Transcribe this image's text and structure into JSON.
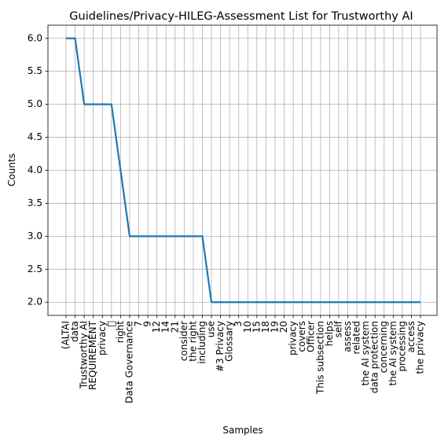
{
  "chart_data": {
    "type": "line",
    "title": "Guidelines/Privacy-HILEG-Assessment List for Trustworthy AI",
    "xlabel": "Samples",
    "ylabel": "Counts",
    "ylim": [
      1.8,
      6.2
    ],
    "yticks": [
      "2.0",
      "2.5",
      "3.0",
      "3.5",
      "4.0",
      "4.5",
      "5.0",
      "5.5",
      "6.0"
    ],
    "grid": true,
    "series_color": "#1f77b4",
    "categories": [
      "(ALTAI",
      "data",
      "Trustworthy AI",
      "REQUIREMENT",
      "privacy",
      "",
      "right",
      "Data Governance",
      "7",
      "9",
      "12",
      "14",
      "21",
      "consider",
      "the right",
      "including",
      "use",
      "#3 Privacy",
      "Glossary",
      "3",
      "10",
      "15",
      "18",
      "19",
      "20",
      "privacy",
      "covers",
      "Officer",
      "This  subsection",
      "helps",
      "self",
      "assess",
      "related",
      "the  AI  system",
      "data protection",
      "concerning",
      "the AI system",
      "processing",
      "access",
      "the  privacy"
    ],
    "values": [
      6,
      6,
      5,
      5,
      5,
      5,
      4,
      3,
      3,
      3,
      3,
      3,
      3,
      3,
      3,
      3,
      2,
      2,
      2,
      2,
      2,
      2,
      2,
      2,
      2,
      2,
      2,
      2,
      2,
      2,
      2,
      2,
      2,
      2,
      2,
      2,
      2,
      2,
      2,
      2
    ]
  }
}
